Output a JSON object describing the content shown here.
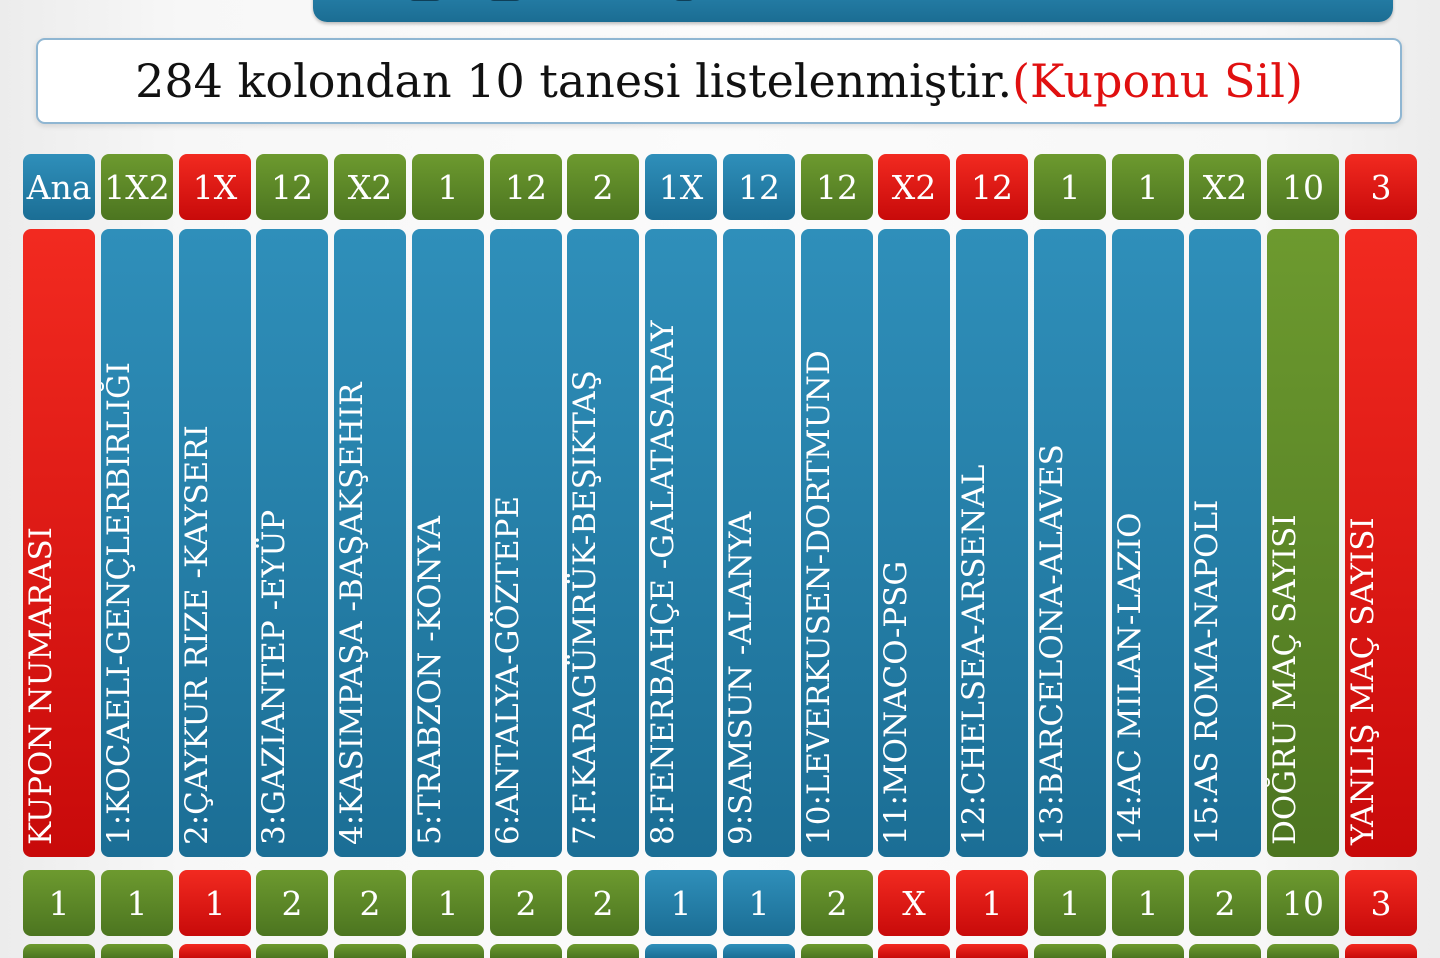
{
  "info": {
    "text": "284 kolondan 10 tanesi listelenmiştir.",
    "delete_link": "(Kuponu Sil)"
  },
  "colors": {
    "green": "#5a8526",
    "red": "#e8150f",
    "blue": "#2680ab"
  },
  "header": [
    "Ana",
    "1X2",
    "1X",
    "12",
    "X2",
    "1",
    "12",
    "2",
    "1X",
    "12",
    "12",
    "X2",
    "12",
    "1",
    "1",
    "X2",
    "10",
    "3"
  ],
  "header_colors": [
    "blue",
    "green",
    "red",
    "green",
    "green",
    "green",
    "green",
    "green",
    "blue",
    "blue",
    "green",
    "red",
    "red",
    "green",
    "green",
    "green",
    "green",
    "red"
  ],
  "columns": [
    {
      "label": "KUPON NUMARASI",
      "color": "red"
    },
    {
      "label": "1:KOCAELI-GENÇLERBIRLIĞI",
      "color": "blue"
    },
    {
      "label": "2:ÇAYKUR RIZE -KAYSERI",
      "color": "blue"
    },
    {
      "label": "3:GAZIANTEP -EYÜP",
      "color": "blue"
    },
    {
      "label": "4:KASIMPAŞA -BAŞAKŞEHIR",
      "color": "blue"
    },
    {
      "label": "5:TRABZON -KONYA",
      "color": "blue"
    },
    {
      "label": "6:ANTALYA-GÖZTEPE",
      "color": "blue"
    },
    {
      "label": "7:F.KARAGÜMRÜK-BEŞIKTAŞ",
      "color": "blue"
    },
    {
      "label": "8:FENERBAHÇE -GALATASARAY",
      "color": "blue"
    },
    {
      "label": "9:SAMSUN -ALANYA",
      "color": "blue"
    },
    {
      "label": "10:LEVERKUSEN-DORTMUND",
      "color": "blue"
    },
    {
      "label": "11:MONACO-PSG",
      "color": "blue"
    },
    {
      "label": "12:CHELSEA-ARSENAL",
      "color": "blue"
    },
    {
      "label": "13:BARCELONA-ALAVES",
      "color": "blue"
    },
    {
      "label": "14:AC MILAN-LAZIO",
      "color": "blue"
    },
    {
      "label": "15:AS ROMA-NAPOLI",
      "color": "blue"
    },
    {
      "label": "DOĞRU MAÇ SAYISI",
      "color": "green"
    },
    {
      "label": "YANLIŞ MAÇ SAYISI",
      "color": "red"
    }
  ],
  "result_row": [
    "1",
    "1",
    "1",
    "2",
    "2",
    "1",
    "2",
    "2",
    "1",
    "1",
    "2",
    "X",
    "1",
    "1",
    "1",
    "2",
    "10",
    "3"
  ],
  "result_colors": [
    "green",
    "green",
    "red",
    "green",
    "green",
    "green",
    "green",
    "green",
    "blue",
    "blue",
    "green",
    "red",
    "red",
    "green",
    "green",
    "green",
    "green",
    "red"
  ],
  "next_row_colors": [
    "green",
    "green",
    "red",
    "green",
    "green",
    "green",
    "green",
    "green",
    "blue",
    "blue",
    "green",
    "red",
    "red",
    "green",
    "green",
    "green",
    "green",
    "red"
  ]
}
